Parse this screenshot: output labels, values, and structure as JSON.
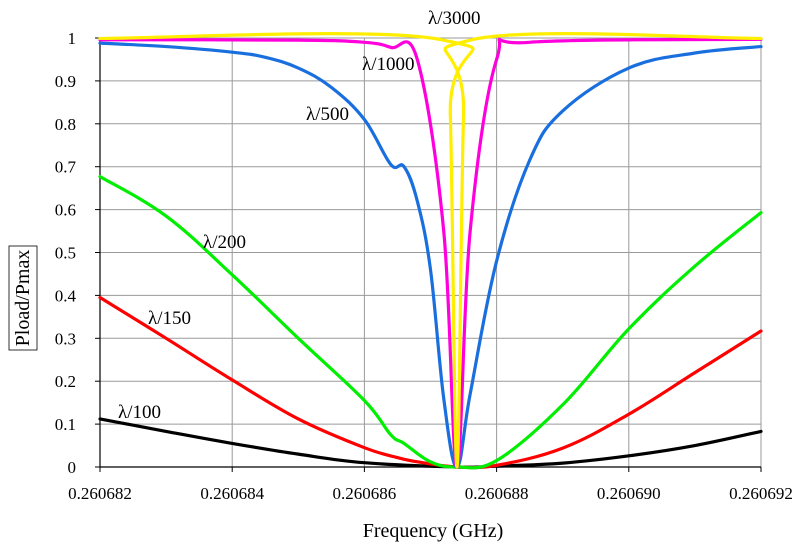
{
  "chart_data": {
    "type": "line",
    "xlabel": "Frequency (GHz)",
    "ylabel": "Pload/Pmax",
    "xlim": [
      0.260682,
      0.260692
    ],
    "ylim": [
      0,
      1
    ],
    "x_ticks": [
      "0.260682",
      "0.260684",
      "0.260686",
      "0.260688",
      "0.260690",
      "0.260692"
    ],
    "y_ticks": [
      "0",
      "0.1",
      "0.2",
      "0.3",
      "0.4",
      "0.5",
      "0.6",
      "0.7",
      "0.8",
      "0.9",
      "1"
    ],
    "grid": true,
    "resonance_frequency": 0.2606874,
    "series": [
      {
        "name": "λ/100",
        "color": "#000000",
        "points": [
          [
            0.260682,
            0.112
          ],
          [
            0.260683,
            0.083
          ],
          [
            0.260684,
            0.055
          ],
          [
            0.260685,
            0.03
          ],
          [
            0.260686,
            0.01
          ],
          [
            0.2606874,
            0.0
          ],
          [
            0.260688,
            0.002
          ],
          [
            0.260689,
            0.009
          ],
          [
            0.26069,
            0.026
          ],
          [
            0.260691,
            0.05
          ],
          [
            0.260692,
            0.083
          ]
        ]
      },
      {
        "name": "λ/150",
        "color": "#ff0000",
        "points": [
          [
            0.260682,
            0.395
          ],
          [
            0.260683,
            0.3
          ],
          [
            0.260684,
            0.203
          ],
          [
            0.260685,
            0.112
          ],
          [
            0.260686,
            0.045
          ],
          [
            0.2606865,
            0.022
          ],
          [
            0.2606868,
            0.012
          ],
          [
            0.2606874,
            0.0
          ],
          [
            0.260688,
            0.004
          ],
          [
            0.260689,
            0.044
          ],
          [
            0.26069,
            0.123
          ],
          [
            0.260691,
            0.22
          ],
          [
            0.260692,
            0.317
          ]
        ]
      },
      {
        "name": "λ/200",
        "color": "#00ee00",
        "points": [
          [
            0.260682,
            0.677
          ],
          [
            0.260683,
            0.585
          ],
          [
            0.260684,
            0.448
          ],
          [
            0.260685,
            0.3
          ],
          [
            0.260686,
            0.155
          ],
          [
            0.2606864,
            0.075
          ],
          [
            0.2606866,
            0.055
          ],
          [
            0.260687,
            0.012
          ],
          [
            0.2606874,
            0.0
          ],
          [
            0.260688,
            0.015
          ],
          [
            0.260689,
            0.145
          ],
          [
            0.26069,
            0.322
          ],
          [
            0.260691,
            0.468
          ],
          [
            0.260692,
            0.593
          ]
        ]
      },
      {
        "name": "λ/500",
        "color": "#1a6fdf",
        "points": [
          [
            0.260682,
            0.988
          ],
          [
            0.260683,
            0.98
          ],
          [
            0.260684,
            0.967
          ],
          [
            0.2606845,
            0.955
          ],
          [
            0.260685,
            0.93
          ],
          [
            0.2606855,
            0.885
          ],
          [
            0.260686,
            0.81
          ],
          [
            0.2606864,
            0.705
          ],
          [
            0.2606866,
            0.7
          ],
          [
            0.2606868,
            0.62
          ],
          [
            0.260687,
            0.46
          ],
          [
            0.2606872,
            0.16
          ],
          [
            0.2606874,
            0.0
          ],
          [
            0.2606876,
            0.17
          ],
          [
            0.260688,
            0.48
          ],
          [
            0.2606885,
            0.715
          ],
          [
            0.260689,
            0.83
          ],
          [
            0.26069,
            0.93
          ],
          [
            0.260691,
            0.965
          ],
          [
            0.260692,
            0.98
          ]
        ]
      },
      {
        "name": "λ/1000",
        "color": "#ff00dd",
        "points": [
          [
            0.260682,
            0.996
          ],
          [
            0.260685,
            0.995
          ],
          [
            0.260686,
            0.99
          ],
          [
            0.2606864,
            0.978
          ],
          [
            0.2606868,
            0.95
          ],
          [
            0.2606872,
            0.55
          ],
          [
            0.2606874,
            0.0
          ],
          [
            0.2606876,
            0.55
          ],
          [
            0.260688,
            0.95
          ],
          [
            0.2606885,
            0.99
          ],
          [
            0.260692,
            0.997
          ]
        ]
      },
      {
        "name": "λ/3000",
        "color": "#ffee00",
        "points": [
          [
            0.260682,
            0.999
          ],
          [
            0.2606872,
            0.995
          ],
          [
            0.2606873,
            0.82
          ],
          [
            0.2606874,
            0.0
          ],
          [
            0.2606875,
            0.82
          ],
          [
            0.2606876,
            0.995
          ],
          [
            0.260692,
            0.999
          ]
        ]
      }
    ]
  }
}
